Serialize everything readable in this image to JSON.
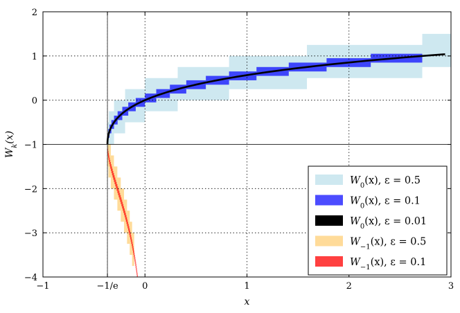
{
  "chart_data": {
    "type": "area",
    "title": "",
    "xlabel": "x",
    "ylabel": "W_k(x)",
    "xlim": [
      -1,
      3
    ],
    "ylim": [
      -4,
      2
    ],
    "grid": true,
    "grid_style": "dotted",
    "legend_position": "bottom-right",
    "x_ticks": [
      {
        "value": -1,
        "label": "−1"
      },
      {
        "value": -0.36788,
        "label": "−1/e"
      },
      {
        "value": 0,
        "label": "0"
      },
      {
        "value": 1,
        "label": "1"
      },
      {
        "value": 2,
        "label": "2"
      },
      {
        "value": 3,
        "label": "3"
      }
    ],
    "y_ticks": [
      {
        "value": -4,
        "label": "−4"
      },
      {
        "value": -3,
        "label": "−3"
      },
      {
        "value": -2,
        "label": "−2"
      },
      {
        "value": -1,
        "label": "−1"
      },
      {
        "value": 0,
        "label": "0"
      },
      {
        "value": 1,
        "label": "1"
      },
      {
        "value": 2,
        "label": "2"
      }
    ],
    "reference_lines": {
      "x": -0.36788,
      "y": -1
    },
    "series": [
      {
        "name": "W_0(x), ε = 0.5",
        "branch": 0,
        "epsilon": 0.5,
        "kind": "boxes",
        "color": "#add8e6",
        "opacity": 0.6
      },
      {
        "name": "W_0(x), ε = 0.1",
        "branch": 0,
        "epsilon": 0.1,
        "kind": "boxes",
        "color": "#0000ff",
        "opacity": 0.7
      },
      {
        "name": "W_0(x), ε = 0.01",
        "branch": 0,
        "epsilon": 0.01,
        "kind": "curve",
        "color": "#000000",
        "opacity": 1
      },
      {
        "name": "W_−1(x), ε = 0.5",
        "branch": -1,
        "epsilon": 0.5,
        "kind": "boxes",
        "color": "#ffa500",
        "opacity": 0.4
      },
      {
        "name": "W_−1(x), ε = 0.1",
        "branch": -1,
        "epsilon": 0.1,
        "kind": "boxes",
        "color": "#ff0000",
        "opacity": 0.75
      }
    ]
  },
  "legend": {
    "items": [
      {
        "base": "W",
        "sub": "0",
        "arg": "(x), ε = 0.5",
        "color": "#add8e6",
        "opacity": 0.6
      },
      {
        "base": "W",
        "sub": "0",
        "arg": "(x), ε = 0.1",
        "color": "#0000ff",
        "opacity": 0.7
      },
      {
        "base": "W",
        "sub": "0",
        "arg": "(x), ε = 0.01",
        "color": "#000000",
        "opacity": 1
      },
      {
        "base": "W",
        "sub": "−1",
        "arg": "(x), ε = 0.5",
        "color": "#ffa500",
        "opacity": 0.4
      },
      {
        "base": "W",
        "sub": "−1",
        "arg": "(x), ε = 0.1",
        "color": "#ff0000",
        "opacity": 0.75
      }
    ]
  }
}
